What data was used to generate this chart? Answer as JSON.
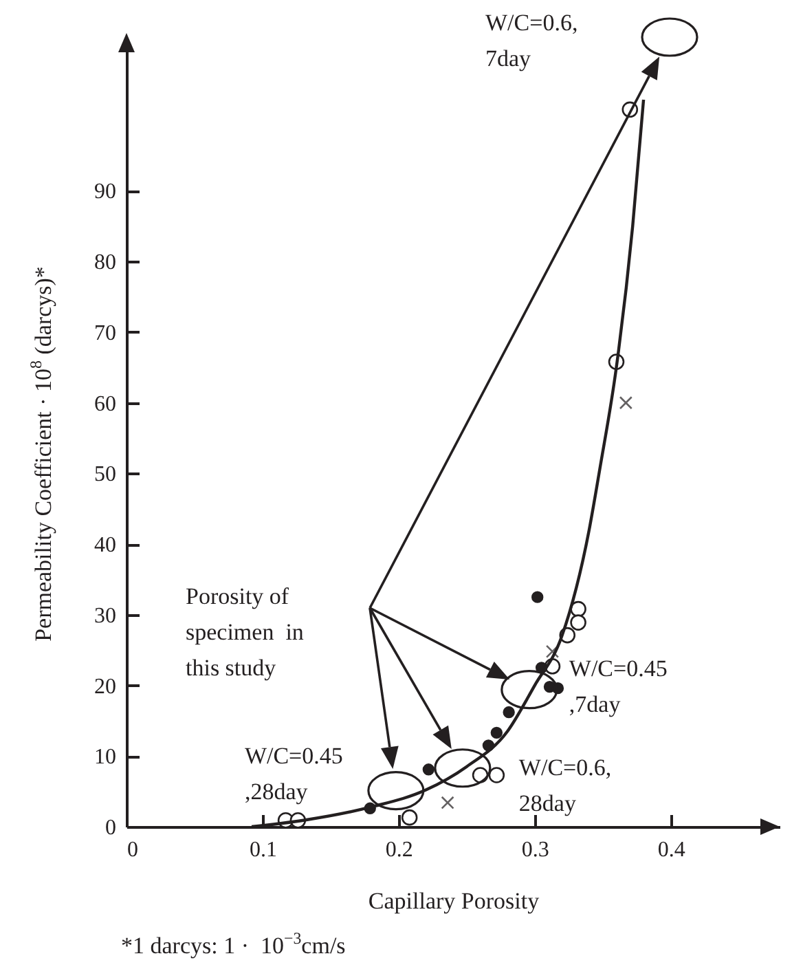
{
  "chart_data": {
    "type": "scatter",
    "xlabel": "Capillary Porosity",
    "ylabel": "Permeability Coefficient · 10$^{8}$ (darcys)*",
    "xlim": [
      0,
      0.48
    ],
    "ylim": [
      0,
      110
    ],
    "xticks": [
      0,
      0.1,
      0.2,
      0.3,
      0.4
    ],
    "yticks": [
      0,
      10,
      20,
      30,
      40,
      50,
      60,
      70,
      80,
      90
    ],
    "grid": false,
    "series": [
      {
        "marker": "circle",
        "color": "#ffffff",
        "x": [
          0.37,
          0.36,
          0.332,
          0.332,
          0.324,
          0.313,
          0.26,
          0.272,
          0.208,
          0.117,
          0.126
        ],
        "values": [
          101.5,
          65.8,
          30.8,
          28.9,
          27.1,
          22.7,
          7.3,
          7.3,
          1.3,
          0.9,
          0.9
        ]
      },
      {
        "marker": "circle",
        "color": "#231f20",
        "x": [
          0.302,
          0.305,
          0.311,
          0.317,
          0.281,
          0.272,
          0.266,
          0.222,
          0.179
        ],
        "values": [
          32.5,
          22.5,
          19.8,
          19.6,
          16.2,
          13.3,
          11.5,
          8.1,
          2.6
        ]
      },
      {
        "marker": "cross",
        "color": "#231f20",
        "x": [
          0.367,
          0.313,
          0.236
        ],
        "values": [
          60,
          24.8,
          3.4
        ]
      },
      {
        "type": "line",
        "marker": "none",
        "color": "#231f20",
        "x": [
          0.092,
          0.13,
          0.18,
          0.22,
          0.25,
          0.28,
          0.3,
          0.32,
          0.34,
          0.348,
          0.36,
          0.372,
          0.38
        ],
        "values": [
          0,
          0.9,
          2.8,
          5.2,
          8.5,
          13.5,
          20,
          27,
          42,
          50.8,
          65,
          85,
          102.9
        ]
      }
    ],
    "annotations": [
      "W/C=0.6,\n7day",
      {
        "text": "W/C=0.45\n,7day",
        "x": 0.296,
        "y": 19.4
      },
      {
        "text": "W/C=0.45\n,28day",
        "x": 0.198,
        "y": 5.1
      },
      {
        "text": "W/C=0.6,\n28day",
        "x": 0.247,
        "y": 8.3
      },
      "Porosity of\nspecimen  in\nthis study",
      "*1 darcys: 1 ·  10$^{−3}$cm/s"
    ]
  }
}
